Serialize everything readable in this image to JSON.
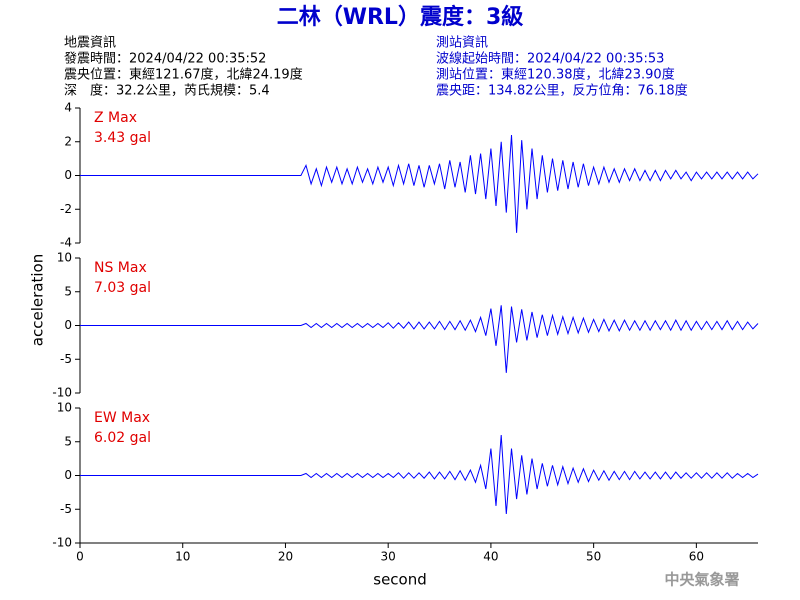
{
  "header": {
    "title": "二林（WRL）震度：3級",
    "left": [
      "地震資訊",
      "發震時間：2024/04/22 00:35:52",
      "震央位置：東經121.67度，北緯24.19度",
      "深　度：32.2公里，芮氏規模：5.4"
    ],
    "right": [
      "測站資訊",
      "波線起始時間：2024/04/22 00:35:53",
      "測站位置：東經120.38度，北緯23.90度",
      "震央距：134.82公里，反方位角：76.18度"
    ],
    "footer": "中央氣象署"
  },
  "chart_data": {
    "type": "line",
    "xlabel": "second",
    "ylabel": "acceleration",
    "xlim": [
      0,
      66
    ],
    "xticks": [
      0,
      10,
      20,
      30,
      40,
      50,
      60
    ],
    "color": "#0000ff",
    "x": [
      0,
      0.5,
      1,
      1.5,
      2,
      2.5,
      3,
      3.5,
      4,
      4.5,
      5,
      5.5,
      6,
      6.5,
      7,
      7.5,
      8,
      8.5,
      9,
      9.5,
      10,
      10.5,
      11,
      11.5,
      12,
      12.5,
      13,
      13.5,
      14,
      14.5,
      15,
      15.5,
      16,
      16.5,
      17,
      17.5,
      18,
      18.5,
      19,
      19.5,
      20,
      20.5,
      21,
      21.5,
      22,
      22.5,
      23,
      23.5,
      24,
      24.5,
      25,
      25.5,
      26,
      26.5,
      27,
      27.5,
      28,
      28.5,
      29,
      29.5,
      30,
      30.5,
      31,
      31.5,
      32,
      32.5,
      33,
      33.5,
      34,
      34.5,
      35,
      35.5,
      36,
      36.5,
      37,
      37.5,
      38,
      38.5,
      39,
      39.5,
      40,
      40.5,
      41,
      41.5,
      42,
      42.5,
      43,
      43.5,
      44,
      44.5,
      45,
      45.5,
      46,
      46.5,
      47,
      47.5,
      48,
      48.5,
      49,
      49.5,
      50,
      50.5,
      51,
      51.5,
      52,
      52.5,
      53,
      53.5,
      54,
      54.5,
      55,
      55.5,
      56,
      56.5,
      57,
      57.5,
      58,
      58.5,
      59,
      59.5,
      60,
      60.5,
      61,
      61.5,
      62,
      62.5,
      63,
      63.5,
      64,
      64.5,
      65,
      65.5,
      66
    ],
    "panels": [
      {
        "label": "Z Max",
        "max_label": "3.43 gal",
        "ylim": [
          -4,
          4
        ],
        "yticks": [
          -4,
          -2,
          0,
          2,
          4
        ],
        "values": [
          0,
          0,
          0,
          0,
          0,
          0,
          0,
          0,
          0,
          0,
          0,
          0,
          0,
          0,
          0,
          0,
          0,
          0,
          0,
          0,
          0,
          0,
          0,
          0,
          0,
          0,
          0,
          0,
          0,
          0,
          0,
          0,
          0,
          0,
          0,
          0,
          0,
          0,
          0,
          0,
          0,
          0,
          0,
          0,
          0.6,
          -0.5,
          0.4,
          -0.6,
          0.5,
          -0.4,
          0.5,
          -0.5,
          0.4,
          -0.5,
          0.5,
          -0.4,
          0.4,
          -0.5,
          0.5,
          -0.4,
          0.5,
          -0.6,
          0.6,
          -0.5,
          0.7,
          -0.6,
          0.6,
          -0.7,
          0.6,
          -0.5,
          0.7,
          -0.8,
          0.9,
          -0.7,
          0.8,
          -1.0,
          1.2,
          -1.1,
          1.3,
          -1.4,
          1.6,
          -1.8,
          2.0,
          -2.2,
          2.4,
          -3.4,
          2.1,
          -2.0,
          1.6,
          -1.4,
          1.2,
          -1.0,
          1.0,
          -0.9,
          0.9,
          -0.8,
          0.8,
          -0.7,
          0.7,
          -0.6,
          0.5,
          -0.5,
          0.5,
          -0.4,
          0.4,
          -0.4,
          0.4,
          -0.3,
          0.4,
          -0.3,
          0.3,
          -0.3,
          0.3,
          -0.3,
          0.3,
          -0.2,
          0.3,
          -0.2,
          0.2,
          -0.3,
          0.2,
          -0.2,
          0.2,
          -0.2,
          0.2,
          -0.2,
          0.2,
          -0.2,
          0.2,
          -0.2,
          0.2,
          -0.2,
          0.1
        ]
      },
      {
        "label": "NS Max",
        "max_label": "7.03 gal",
        "ylim": [
          -10,
          10
        ],
        "yticks": [
          -10,
          -5,
          0,
          5,
          10
        ],
        "values": [
          0,
          0,
          0,
          0,
          0,
          0,
          0,
          0,
          0,
          0,
          0,
          0,
          0,
          0,
          0,
          0,
          0,
          0,
          0,
          0,
          0,
          0,
          0,
          0,
          0,
          0,
          0,
          0,
          0,
          0,
          0,
          0,
          0,
          0,
          0,
          0,
          0,
          0,
          0,
          0,
          0,
          0,
          0,
          0,
          0.3,
          -0.3,
          0.3,
          -0.3,
          0.3,
          -0.3,
          0.3,
          -0.3,
          0.3,
          -0.3,
          0.3,
          -0.3,
          0.3,
          -0.3,
          0.3,
          -0.3,
          0.4,
          -0.4,
          0.4,
          -0.4,
          0.5,
          -0.5,
          0.5,
          -0.5,
          0.5,
          -0.5,
          0.6,
          -0.6,
          0.6,
          -0.6,
          0.7,
          -0.7,
          0.8,
          -0.9,
          1.2,
          -1.5,
          2.5,
          -3.0,
          3.0,
          -7.0,
          2.8,
          -2.5,
          2.4,
          -2.2,
          2.0,
          -1.8,
          1.6,
          -1.5,
          1.5,
          -1.3,
          1.3,
          -1.2,
          1.2,
          -1.1,
          1.1,
          -1.0,
          0.9,
          -0.9,
          0.9,
          -0.8,
          0.8,
          -0.8,
          0.8,
          -0.7,
          0.7,
          -0.7,
          0.7,
          -0.7,
          0.7,
          -0.6,
          0.7,
          -0.7,
          0.8,
          -0.7,
          0.7,
          -0.7,
          0.6,
          -0.6,
          0.6,
          -0.6,
          0.6,
          -0.6,
          0.7,
          -0.6,
          0.6,
          -0.6,
          0.5,
          -0.5,
          0.3
        ]
      },
      {
        "label": "EW Max",
        "max_label": "6.02 gal",
        "ylim": [
          -10,
          10
        ],
        "yticks": [
          -10,
          -5,
          0,
          5,
          10
        ],
        "values": [
          0,
          0,
          0,
          0,
          0,
          0,
          0,
          0,
          0,
          0,
          0,
          0,
          0,
          0,
          0,
          0,
          0,
          0,
          0,
          0,
          0,
          0,
          0,
          0,
          0,
          0,
          0,
          0,
          0,
          0,
          0,
          0,
          0,
          0,
          0,
          0,
          0,
          0,
          0,
          0,
          0,
          0,
          0,
          0,
          0.3,
          -0.3,
          0.3,
          -0.3,
          0.3,
          -0.3,
          0.3,
          -0.3,
          0.3,
          -0.3,
          0.3,
          -0.3,
          0.3,
          -0.3,
          0.3,
          -0.3,
          0.3,
          -0.3,
          0.4,
          -0.4,
          0.4,
          -0.4,
          0.4,
          -0.4,
          0.5,
          -0.5,
          0.5,
          -0.5,
          0.6,
          -0.6,
          0.7,
          -0.7,
          0.8,
          -1.0,
          1.5,
          -2.0,
          4.0,
          -4.5,
          6.0,
          -5.7,
          4.0,
          -3.5,
          3.0,
          -2.8,
          2.5,
          -2.0,
          1.8,
          -1.6,
          1.5,
          -1.4,
          1.3,
          -1.2,
          1.1,
          -1.0,
          1.0,
          -0.9,
          0.8,
          -0.7,
          0.7,
          -0.7,
          0.6,
          -0.6,
          0.6,
          -0.6,
          0.6,
          -0.5,
          0.5,
          -0.5,
          0.5,
          -0.5,
          0.5,
          -0.5,
          0.5,
          -0.4,
          0.4,
          -0.4,
          0.4,
          -0.4,
          0.4,
          -0.4,
          0.4,
          -0.4,
          0.4,
          -0.4,
          0.3,
          -0.3,
          0.3,
          -0.3,
          0.2
        ]
      }
    ]
  }
}
